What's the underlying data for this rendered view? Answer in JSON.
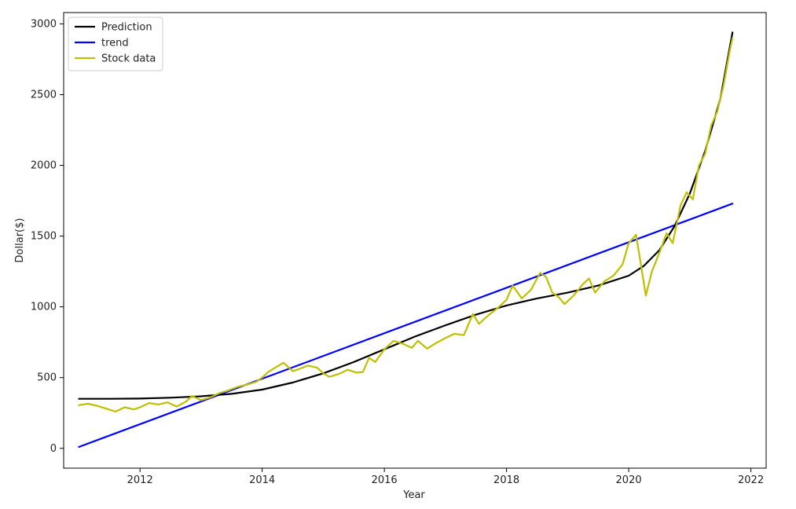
{
  "chart_data": {
    "type": "line",
    "title": "",
    "xlabel": "Year",
    "ylabel": "Dollar($)",
    "xlim": [
      2010.75,
      2022.25
    ],
    "ylim": [
      -140,
      3080
    ],
    "x_ticks": [
      2012,
      2014,
      2016,
      2018,
      2020,
      2022
    ],
    "y_ticks": [
      0,
      500,
      1000,
      1500,
      2000,
      2500,
      3000
    ],
    "grid": false,
    "legend_position": "top-left",
    "series": [
      {
        "name": "Prediction",
        "color": "#000000",
        "points": [
          [
            2011.0,
            350
          ],
          [
            2011.5,
            350
          ],
          [
            2012.0,
            352
          ],
          [
            2012.5,
            358
          ],
          [
            2013.0,
            368
          ],
          [
            2013.5,
            385
          ],
          [
            2014.0,
            415
          ],
          [
            2014.5,
            465
          ],
          [
            2015.0,
            530
          ],
          [
            2015.5,
            610
          ],
          [
            2016.0,
            700
          ],
          [
            2016.5,
            790
          ],
          [
            2017.0,
            870
          ],
          [
            2017.5,
            945
          ],
          [
            2018.0,
            1010
          ],
          [
            2018.5,
            1060
          ],
          [
            2019.0,
            1100
          ],
          [
            2019.5,
            1150
          ],
          [
            2020.0,
            1220
          ],
          [
            2020.25,
            1290
          ],
          [
            2020.5,
            1400
          ],
          [
            2020.75,
            1570
          ],
          [
            2021.0,
            1800
          ],
          [
            2021.25,
            2100
          ],
          [
            2021.5,
            2470
          ],
          [
            2021.7,
            2940
          ]
        ]
      },
      {
        "name": "trend",
        "color": "#0000ff",
        "points": [
          [
            2011.0,
            10
          ],
          [
            2021.7,
            1730
          ]
        ]
      },
      {
        "name": "Stock data",
        "color": "#bfbf00",
        "points": [
          [
            2011.0,
            305
          ],
          [
            2011.15,
            315
          ],
          [
            2011.3,
            300
          ],
          [
            2011.45,
            280
          ],
          [
            2011.6,
            260
          ],
          [
            2011.75,
            290
          ],
          [
            2011.9,
            275
          ],
          [
            2012.0,
            290
          ],
          [
            2012.15,
            320
          ],
          [
            2012.3,
            310
          ],
          [
            2012.45,
            325
          ],
          [
            2012.6,
            295
          ],
          [
            2012.75,
            330
          ],
          [
            2012.85,
            370
          ],
          [
            2013.0,
            340
          ],
          [
            2013.15,
            360
          ],
          [
            2013.3,
            390
          ],
          [
            2013.45,
            410
          ],
          [
            2013.6,
            435
          ],
          [
            2013.75,
            450
          ],
          [
            2013.9,
            470
          ],
          [
            2014.0,
            500
          ],
          [
            2014.1,
            540
          ],
          [
            2014.25,
            580
          ],
          [
            2014.35,
            605
          ],
          [
            2014.5,
            545
          ],
          [
            2014.6,
            560
          ],
          [
            2014.75,
            585
          ],
          [
            2014.9,
            570
          ],
          [
            2015.0,
            530
          ],
          [
            2015.1,
            505
          ],
          [
            2015.25,
            525
          ],
          [
            2015.4,
            555
          ],
          [
            2015.55,
            535
          ],
          [
            2015.65,
            540
          ],
          [
            2015.75,
            640
          ],
          [
            2015.85,
            610
          ],
          [
            2016.0,
            700
          ],
          [
            2016.15,
            760
          ],
          [
            2016.3,
            740
          ],
          [
            2016.45,
            710
          ],
          [
            2016.55,
            760
          ],
          [
            2016.7,
            705
          ],
          [
            2016.85,
            745
          ],
          [
            2017.0,
            780
          ],
          [
            2017.15,
            810
          ],
          [
            2017.3,
            800
          ],
          [
            2017.45,
            950
          ],
          [
            2017.55,
            880
          ],
          [
            2017.7,
            940
          ],
          [
            2017.85,
            990
          ],
          [
            2018.0,
            1050
          ],
          [
            2018.1,
            1150
          ],
          [
            2018.25,
            1060
          ],
          [
            2018.4,
            1120
          ],
          [
            2018.55,
            1240
          ],
          [
            2018.65,
            1210
          ],
          [
            2018.75,
            1100
          ],
          [
            2018.85,
            1070
          ],
          [
            2018.95,
            1020
          ],
          [
            2019.1,
            1080
          ],
          [
            2019.25,
            1160
          ],
          [
            2019.35,
            1200
          ],
          [
            2019.45,
            1100
          ],
          [
            2019.6,
            1180
          ],
          [
            2019.75,
            1220
          ],
          [
            2019.9,
            1300
          ],
          [
            2020.0,
            1450
          ],
          [
            2020.12,
            1510
          ],
          [
            2020.2,
            1300
          ],
          [
            2020.28,
            1080
          ],
          [
            2020.38,
            1250
          ],
          [
            2020.5,
            1380
          ],
          [
            2020.62,
            1520
          ],
          [
            2020.72,
            1450
          ],
          [
            2020.85,
            1720
          ],
          [
            2020.95,
            1810
          ],
          [
            2021.05,
            1760
          ],
          [
            2021.15,
            2000
          ],
          [
            2021.25,
            2080
          ],
          [
            2021.35,
            2280
          ],
          [
            2021.45,
            2380
          ],
          [
            2021.55,
            2560
          ],
          [
            2021.65,
            2800
          ],
          [
            2021.7,
            2900
          ]
        ]
      }
    ]
  }
}
